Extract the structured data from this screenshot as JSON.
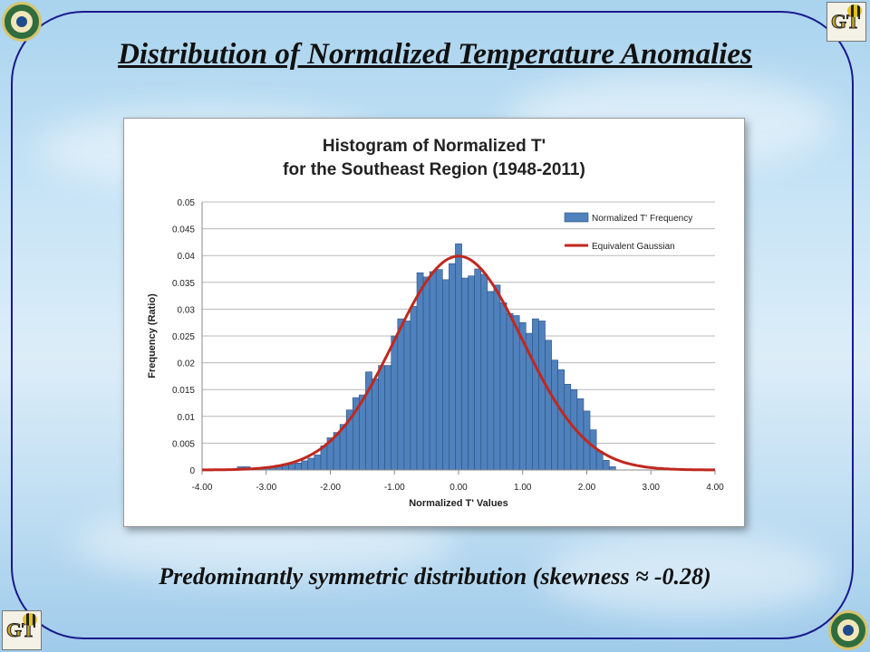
{
  "slide": {
    "title": "Distribution of Normalized Temperature Anomalies",
    "caption": "Predominantly symmetric distribution (skewness ≈ -0.28)"
  },
  "logos": [
    "doe-seal-icon",
    "gt-buzz-icon",
    "gt-buzz-icon",
    "doe-seal-icon"
  ],
  "chart_data": {
    "type": "bar",
    "title_lines": [
      "Histogram of Normalized T'",
      "for the Southeast Region (1948-2011)"
    ],
    "xlabel": "Normalized T' Values",
    "ylabel": "Frequency (Ratio)",
    "xlim": [
      -4,
      4
    ],
    "ylim": [
      0,
      0.05
    ],
    "xticks": [
      "-4.00",
      "-3.00",
      "-2.00",
      "-1.00",
      "0.00",
      "1.00",
      "2.00",
      "3.00",
      "4.00"
    ],
    "yticks": [
      "0",
      "0.005",
      "0.01",
      "0.015",
      "0.02",
      "0.025",
      "0.03",
      "0.035",
      "0.04",
      "0.045",
      "0.05"
    ],
    "grid": true,
    "legend_position": "top-right",
    "bar_series": {
      "name": "Normalized T' Frequency",
      "color": "#4f81bd",
      "bin_width": 0.1,
      "bins": [
        [
          -3.4,
          0.0006
        ],
        [
          -3.3,
          0.0006
        ],
        [
          -3.2,
          0.0003
        ],
        [
          -3.1,
          0.0003
        ],
        [
          -3.0,
          0.0004
        ],
        [
          -2.9,
          0.0005
        ],
        [
          -2.8,
          0.0006
        ],
        [
          -2.7,
          0.0009
        ],
        [
          -2.6,
          0.0011
        ],
        [
          -2.5,
          0.0013
        ],
        [
          -2.4,
          0.0017
        ],
        [
          -2.3,
          0.0022
        ],
        [
          -2.2,
          0.0028
        ],
        [
          -2.1,
          0.0045
        ],
        [
          -2.0,
          0.006
        ],
        [
          -1.9,
          0.007
        ],
        [
          -1.8,
          0.0085
        ],
        [
          -1.7,
          0.0112
        ],
        [
          -1.6,
          0.0135
        ],
        [
          -1.5,
          0.014
        ],
        [
          -1.4,
          0.0183
        ],
        [
          -1.3,
          0.017
        ],
        [
          -1.2,
          0.0195
        ],
        [
          -1.1,
          0.0195
        ],
        [
          -1.0,
          0.025
        ],
        [
          -0.9,
          0.0282
        ],
        [
          -0.8,
          0.0278
        ],
        [
          -0.7,
          0.0305
        ],
        [
          -0.6,
          0.0368
        ],
        [
          -0.5,
          0.036
        ],
        [
          -0.4,
          0.037
        ],
        [
          -0.3,
          0.0374
        ],
        [
          -0.2,
          0.0355
        ],
        [
          -0.1,
          0.0385
        ],
        [
          0.0,
          0.0422
        ],
        [
          0.1,
          0.0358
        ],
        [
          0.2,
          0.0362
        ],
        [
          0.3,
          0.0375
        ],
        [
          0.4,
          0.0365
        ],
        [
          0.5,
          0.0333
        ],
        [
          0.6,
          0.0345
        ],
        [
          0.7,
          0.0312
        ],
        [
          0.8,
          0.0292
        ],
        [
          0.9,
          0.0288
        ],
        [
          1.0,
          0.0275
        ],
        [
          1.1,
          0.0255
        ],
        [
          1.2,
          0.0282
        ],
        [
          1.3,
          0.0278
        ],
        [
          1.4,
          0.0242
        ],
        [
          1.5,
          0.0205
        ],
        [
          1.6,
          0.0187
        ],
        [
          1.7,
          0.016
        ],
        [
          1.8,
          0.015
        ],
        [
          1.9,
          0.0133
        ],
        [
          2.0,
          0.011
        ],
        [
          2.1,
          0.0075
        ],
        [
          2.2,
          0.0035
        ],
        [
          2.3,
          0.0018
        ],
        [
          2.4,
          0.0006
        ]
      ]
    },
    "line_series": {
      "name": "Equivalent Gaussian",
      "color": "#c0281e",
      "mean": 0.0,
      "std": 1.0,
      "scale": 0.1
    }
  }
}
